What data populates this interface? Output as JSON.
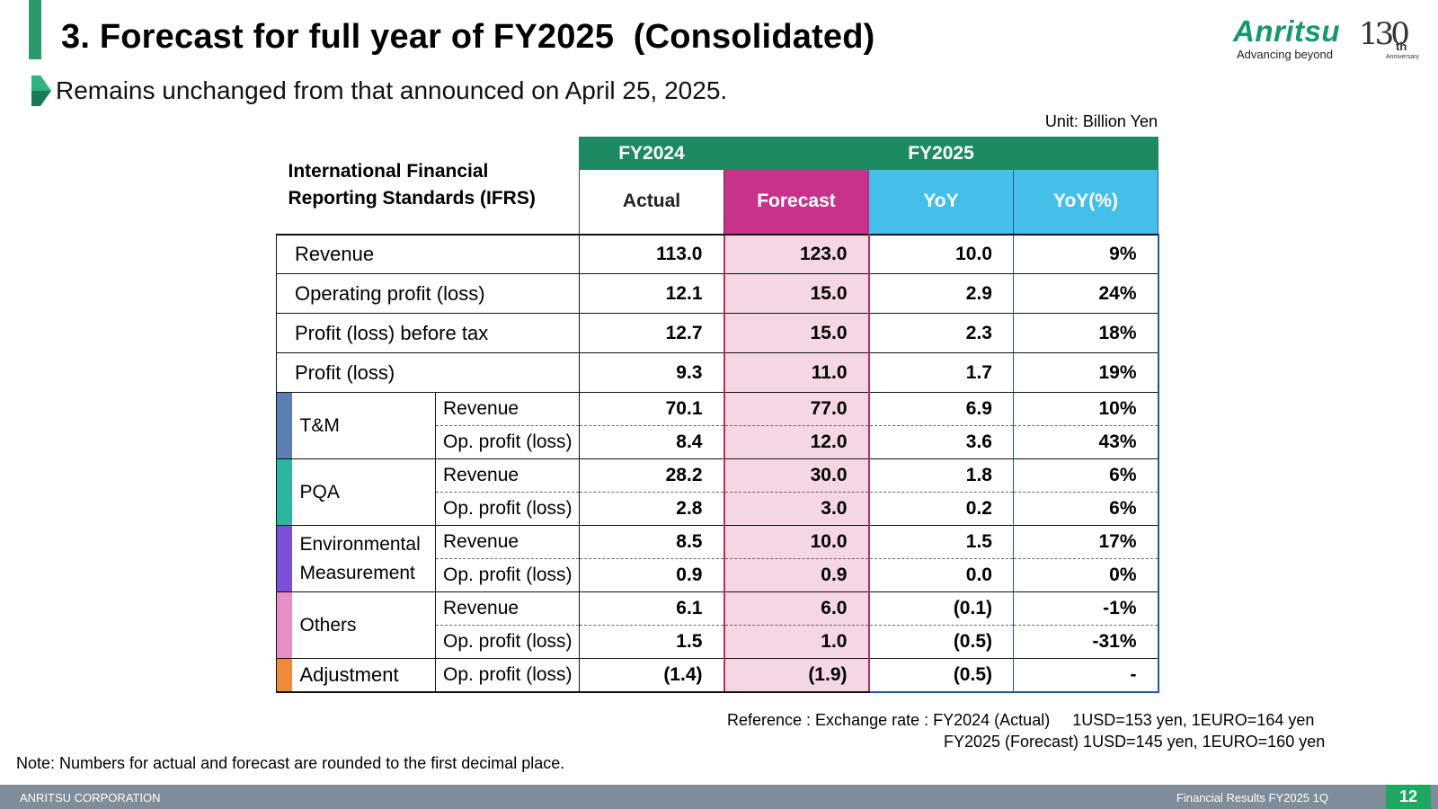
{
  "header": {
    "title": "3. Forecast for full year of FY2025  (Consolidated)",
    "subtitle": "Remains unchanged from that announced on April 25, 2025.",
    "logo_text": "Anritsu",
    "logo_tagline": "Advancing beyond",
    "anniversary_number": "130",
    "anniversary_suffix": "th",
    "anniversary_label": "Anniversary"
  },
  "unit": "Unit: Billion Yen",
  "table": {
    "corner_label_line1": "International Financial",
    "corner_label_line2": "Reporting Standards (IFRS)",
    "group_fy2024": "FY2024",
    "group_fy2025": "FY2025",
    "col_actual": "Actual",
    "col_forecast": "Forecast",
    "col_yoy": "YoY",
    "col_yoy_pct": "YoY(%)",
    "main_rows": [
      {
        "label": "Revenue",
        "actual": "113.0",
        "forecast": "123.0",
        "yoy": "10.0",
        "yoy_pct": "9%"
      },
      {
        "label": "Operating profit (loss)",
        "actual": "12.1",
        "forecast": "15.0",
        "yoy": "2.9",
        "yoy_pct": "24%"
      },
      {
        "label": "Profit (loss) before tax",
        "actual": "12.7",
        "forecast": "15.0",
        "yoy": "2.3",
        "yoy_pct": "18%"
      },
      {
        "label": "Profit (loss)",
        "actual": "9.3",
        "forecast": "11.0",
        "yoy": "1.7",
        "yoy_pct": "19%"
      }
    ],
    "segments": [
      {
        "name": "T&M",
        "color": "#5a7fb0",
        "rows": [
          {
            "label": "Revenue",
            "actual": "70.1",
            "forecast": "77.0",
            "yoy": "6.9",
            "yoy_pct": "10%"
          },
          {
            "label": "Op. profit (loss)",
            "actual": "8.4",
            "forecast": "12.0",
            "yoy": "3.6",
            "yoy_pct": "43%"
          }
        ]
      },
      {
        "name": "PQA",
        "color": "#2cb6a0",
        "rows": [
          {
            "label": "Revenue",
            "actual": "28.2",
            "forecast": "30.0",
            "yoy": "1.8",
            "yoy_pct": "6%"
          },
          {
            "label": "Op. profit (loss)",
            "actual": "2.8",
            "forecast": "3.0",
            "yoy": "0.2",
            "yoy_pct": "6%"
          }
        ]
      },
      {
        "name_line1": "Environmental",
        "name_line2": "Measurement",
        "color": "#7b4fd6",
        "rows": [
          {
            "label": "Revenue",
            "actual": "8.5",
            "forecast": "10.0",
            "yoy": "1.5",
            "yoy_pct": "17%"
          },
          {
            "label": "Op. profit (loss)",
            "actual": "0.9",
            "forecast": "0.9",
            "yoy": "0.0",
            "yoy_pct": "0%"
          }
        ]
      },
      {
        "name": "Others",
        "color": "#e68fc6",
        "rows": [
          {
            "label": "Revenue",
            "actual": "6.1",
            "forecast": "6.0",
            "yoy": "(0.1)",
            "yoy_pct": "-1%"
          },
          {
            "label": "Op. profit (loss)",
            "actual": "1.5",
            "forecast": "1.0",
            "yoy": "(0.5)",
            "yoy_pct": "-31%"
          }
        ]
      },
      {
        "name": "Adjustment",
        "color": "#f08a3a",
        "rows": [
          {
            "label": "Op. profit (loss)",
            "actual": "(1.4)",
            "forecast": "(1.9)",
            "yoy": "(0.5)",
            "yoy_pct": "-"
          }
        ]
      }
    ]
  },
  "reference_line1": "Reference : Exchange rate : FY2024 (Actual)     1USD=153 yen, 1EURO=164 yen",
  "reference_line2": "FY2025 (Forecast) 1USD=145 yen, 1EURO=160 yen",
  "note": "Note:  Numbers for actual and forecast are rounded to the first decimal place.",
  "footer": {
    "company": "ANRITSU CORPORATION",
    "doc_title": "Financial Results FY2025 1Q",
    "page_number": "12"
  },
  "colors": {
    "brand_green": "#1e8a62",
    "forecast_magenta": "#c7338a",
    "yoy_blue": "#45bfea",
    "forecast_pink_bg": "#f5d6e4",
    "footer_gray": "#7f8c99",
    "page_green": "#1ea864"
  }
}
